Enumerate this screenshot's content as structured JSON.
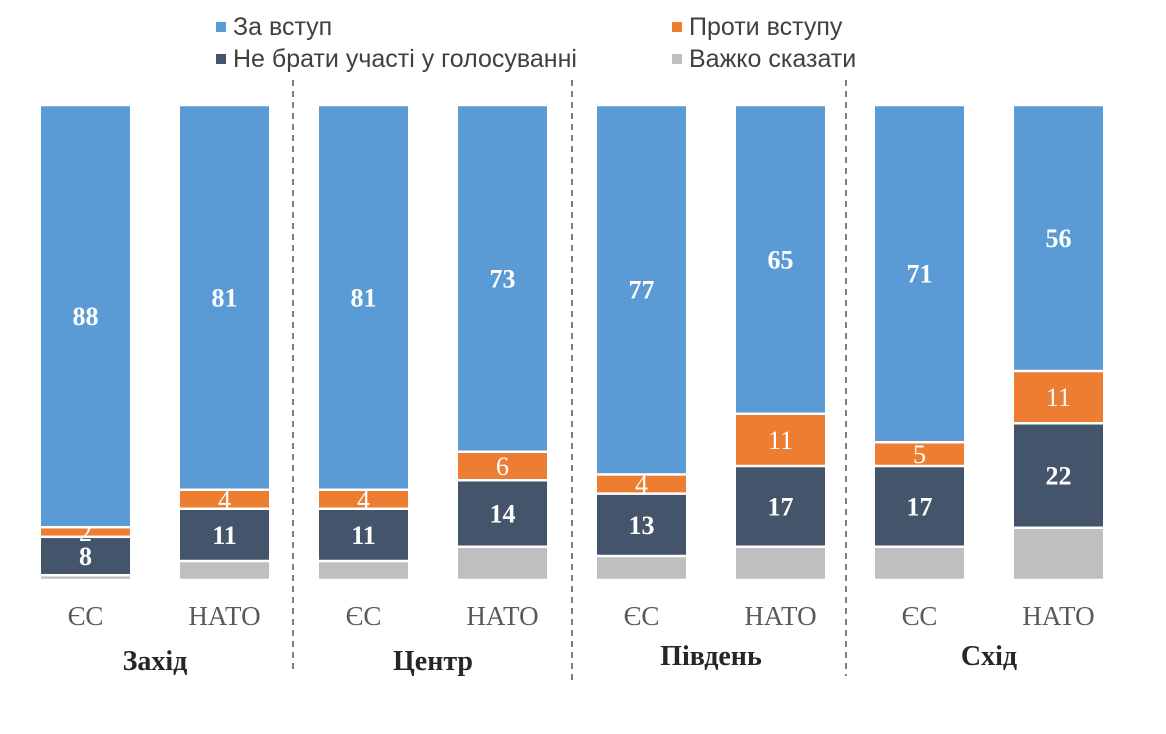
{
  "chart_data": {
    "type": "bar",
    "stacked": true,
    "groups": [
      {
        "region": "Захід",
        "bars": [
          {
            "label": "ЄС",
            "values": [
              88,
              2,
              8,
              1
            ]
          },
          {
            "label": "НАТО",
            "values": [
              81,
              4,
              11,
              4
            ]
          }
        ]
      },
      {
        "region": "Центр",
        "bars": [
          {
            "label": "ЄС",
            "values": [
              81,
              4,
              11,
              4
            ]
          },
          {
            "label": "НАТО",
            "values": [
              73,
              6,
              14,
              7
            ]
          }
        ]
      },
      {
        "region": "Південь",
        "bars": [
          {
            "label": "ЄС",
            "values": [
              77,
              4,
              13,
              5
            ]
          },
          {
            "label": "НАТО",
            "values": [
              65,
              11,
              17,
              7
            ]
          }
        ]
      },
      {
        "region": "Схід",
        "bars": [
          {
            "label": "ЄС",
            "values": [
              71,
              5,
              17,
              7
            ]
          },
          {
            "label": "НАТО",
            "values": [
              56,
              11,
              22,
              11
            ]
          }
        ]
      }
    ],
    "series": [
      {
        "name": "За вступ",
        "color": "#5b9bd5",
        "show_labels": true,
        "label_style": "bold"
      },
      {
        "name": "Проти вступу",
        "color": "#ed7d31",
        "show_labels": true,
        "label_style": "normal"
      },
      {
        "name": "Не брати участі у голосуванні",
        "color": "#44546a",
        "show_labels": true,
        "label_style": "bold"
      },
      {
        "name": "Важко сказати",
        "color": "#bfbfbf",
        "show_labels": false
      }
    ],
    "legend_order": [
      0,
      1,
      2,
      3
    ],
    "legend_position": "top",
    "grid": false,
    "group_separators": "dashed"
  }
}
